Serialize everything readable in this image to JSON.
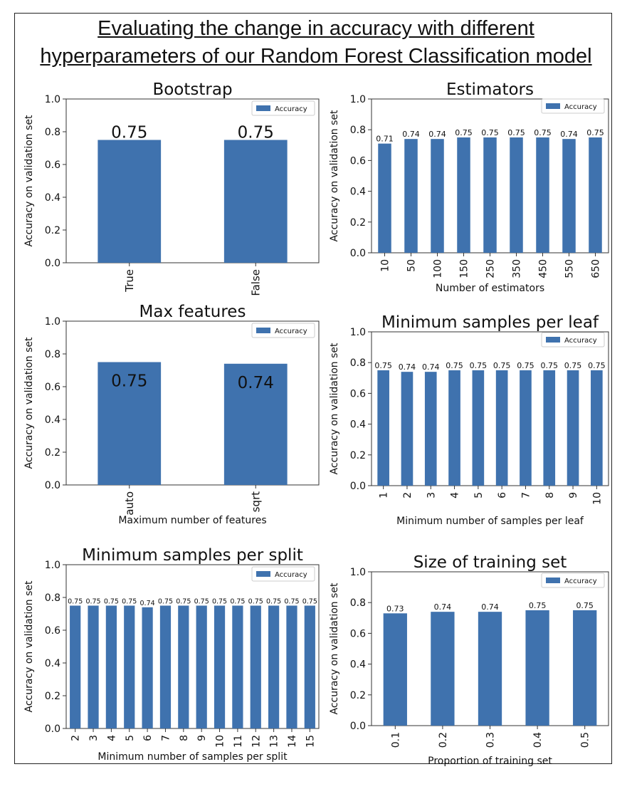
{
  "figure": {
    "title_line1": "Evaluating the change in accuracy with different",
    "title_line2": "hyperparameters of our Random Forest Classification model"
  },
  "colors": {
    "bar": "#3f72ae",
    "axis": "#333333",
    "text": "#111111"
  },
  "chart_data": [
    {
      "type": "bar",
      "title": "Bootstrap",
      "categories": [
        "True",
        "False"
      ],
      "series": [
        {
          "name": "Accuracy",
          "values": [
            0.75,
            0.75
          ]
        }
      ],
      "data_labels": [
        "0.75",
        "0.75"
      ],
      "xlabel": "",
      "ylabel": "Accuracy on validation set",
      "ylim": [
        0.0,
        1.0
      ],
      "yticks": [
        "0.0",
        "0.2",
        "0.4",
        "0.6",
        "0.8",
        "1.0"
      ],
      "legend": "top-right",
      "grid": false
    },
    {
      "type": "bar",
      "title": "Estimators",
      "categories": [
        "10",
        "50",
        "100",
        "150",
        "250",
        "350",
        "450",
        "550",
        "650"
      ],
      "series": [
        {
          "name": "Accuracy",
          "values": [
            0.71,
            0.74,
            0.74,
            0.75,
            0.75,
            0.75,
            0.75,
            0.74,
            0.75
          ]
        }
      ],
      "data_labels": [
        "0.71",
        "0.74",
        "0.74",
        "0.75",
        "0.75",
        "0.75",
        "0.75",
        "0.74",
        "0.75"
      ],
      "xlabel": "Number of estimators",
      "ylabel": "Accuracy on validation set",
      "ylim": [
        0.0,
        1.0
      ],
      "yticks": [
        "0.0",
        "0.2",
        "0.4",
        "0.6",
        "0.8",
        "1.0"
      ],
      "legend": "top-right",
      "grid": false
    },
    {
      "type": "bar",
      "title": "Max features",
      "categories": [
        "auto",
        "sqrt"
      ],
      "series": [
        {
          "name": "Accuracy",
          "values": [
            0.75,
            0.74
          ]
        }
      ],
      "data_labels": [
        "0.75",
        "0.74"
      ],
      "xlabel": "Maximum number of features",
      "ylabel": "Accuracy on validation set",
      "ylim": [
        0.0,
        1.0
      ],
      "yticks": [
        "0.0",
        "0.2",
        "0.4",
        "0.6",
        "0.8",
        "1.0"
      ],
      "legend": "top-right",
      "grid": false
    },
    {
      "type": "bar",
      "title": "Minimum samples per leaf",
      "categories": [
        "1",
        "2",
        "3",
        "4",
        "5",
        "6",
        "7",
        "8",
        "9",
        "10"
      ],
      "series": [
        {
          "name": "Accuracy",
          "values": [
            0.75,
            0.74,
            0.74,
            0.75,
            0.75,
            0.75,
            0.75,
            0.75,
            0.75,
            0.75
          ]
        }
      ],
      "data_labels": [
        "0.75",
        "0.74",
        "0.74",
        "0.75",
        "0.75",
        "0.75",
        "0.75",
        "0.75",
        "0.75",
        "0.75"
      ],
      "xlabel": "Minimum number of samples per leaf",
      "ylabel": "Accuracy on validation set",
      "ylim": [
        0.0,
        1.0
      ],
      "yticks": [
        "0.0",
        "0.2",
        "0.4",
        "0.6",
        "0.8",
        "1.0"
      ],
      "legend": "top-right",
      "grid": false
    },
    {
      "type": "bar",
      "title": "Minimum samples per split",
      "categories": [
        "2",
        "3",
        "4",
        "5",
        "6",
        "7",
        "8",
        "9",
        "10",
        "11",
        "12",
        "13",
        "14",
        "15"
      ],
      "series": [
        {
          "name": "Accuracy",
          "values": [
            0.75,
            0.75,
            0.75,
            0.75,
            0.74,
            0.75,
            0.75,
            0.75,
            0.75,
            0.75,
            0.75,
            0.75,
            0.75,
            0.75
          ]
        }
      ],
      "data_labels": [
        "0.75",
        "0.75",
        "0.75",
        "0.75",
        "0.74",
        "0.75",
        "0.75",
        "0.75",
        "0.75",
        "0.75",
        "0.75",
        "0.75",
        "0.75",
        "0.75"
      ],
      "xlabel": "Minimum number of samples per split",
      "ylabel": "Accuracy on validation set",
      "ylim": [
        0.0,
        1.0
      ],
      "yticks": [
        "0.0",
        "0.2",
        "0.4",
        "0.6",
        "0.8",
        "1.0"
      ],
      "legend": "top-right",
      "grid": false
    },
    {
      "type": "bar",
      "title": "Size of training set",
      "categories": [
        "0.1",
        "0.2",
        "0.3",
        "0.4",
        "0.5"
      ],
      "series": [
        {
          "name": "Accuracy",
          "values": [
            0.73,
            0.74,
            0.74,
            0.75,
            0.75
          ]
        }
      ],
      "data_labels": [
        "0.73",
        "0.74",
        "0.74",
        "0.75",
        "0.75"
      ],
      "xlabel": "Proportion of training set",
      "ylabel": "Accuracy on validation set",
      "ylim": [
        0.0,
        1.0
      ],
      "yticks": [
        "0.0",
        "0.2",
        "0.4",
        "0.6",
        "0.8",
        "1.0"
      ],
      "legend": "top-right",
      "grid": false
    }
  ]
}
